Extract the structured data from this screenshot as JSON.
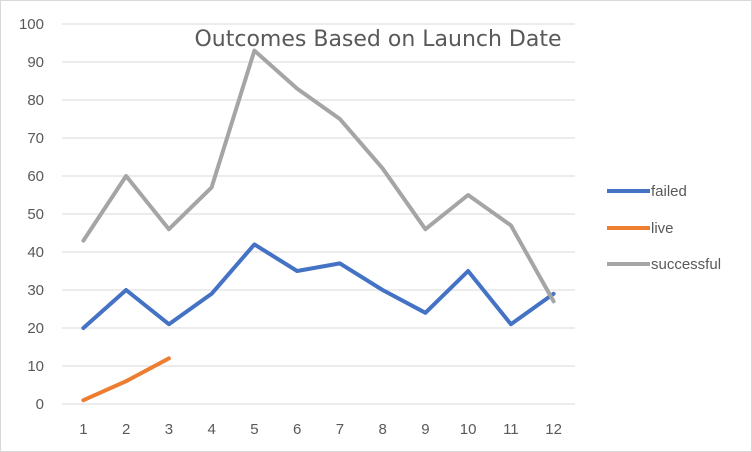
{
  "chart_data": {
    "type": "line",
    "title": "Outcomes Based on Launch Date",
    "xlabel": "",
    "ylabel": "",
    "x": [
      1,
      2,
      3,
      4,
      5,
      6,
      7,
      8,
      9,
      10,
      11,
      12
    ],
    "ylim": [
      0,
      100
    ],
    "yticks": [
      0,
      10,
      20,
      30,
      40,
      50,
      60,
      70,
      80,
      90,
      100
    ],
    "grid": true,
    "legend_position": "right",
    "series": [
      {
        "name": "failed",
        "color": "#4472c4",
        "values": [
          20,
          30,
          21,
          29,
          42,
          35,
          37,
          30,
          24,
          35,
          21,
          29
        ]
      },
      {
        "name": "live",
        "color": "#ed7d31",
        "values": [
          1,
          6,
          12,
          null,
          null,
          null,
          null,
          null,
          null,
          null,
          null,
          null
        ]
      },
      {
        "name": "successful",
        "color": "#a5a5a5",
        "values": [
          43,
          60,
          46,
          57,
          93,
          83,
          75,
          62,
          46,
          55,
          47,
          27
        ]
      }
    ]
  }
}
